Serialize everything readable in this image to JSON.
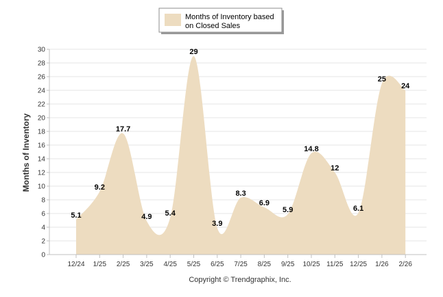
{
  "chart_data": {
    "type": "area",
    "categories": [
      "12/24",
      "1/25",
      "2/25",
      "3/25",
      "4/25",
      "5/25",
      "6/25",
      "7/25",
      "8/25",
      "9/25",
      "10/25",
      "11/25",
      "12/25",
      "1/26",
      "2/26"
    ],
    "series": [
      {
        "name": "Months of Inventory based on Closed Sales",
        "values": [
          5.1,
          9.2,
          17.7,
          4.9,
          5.4,
          29,
          3.9,
          8.3,
          6.9,
          5.9,
          14.8,
          12,
          6.1,
          25,
          24
        ],
        "labels": [
          "5.1",
          "9.2",
          "17.7",
          "4.9",
          "5.4",
          "29",
          "3.9",
          "8.3",
          "6.9",
          "5.9",
          "14.8",
          "12",
          "6.1",
          "25",
          "24"
        ],
        "color": "#eddcc0"
      }
    ],
    "ylabel": "Months of Inventory",
    "ylim": [
      0,
      30
    ],
    "yticks": [
      "0",
      "2",
      "4",
      "6",
      "8",
      "10",
      "12",
      "14",
      "16",
      "18",
      "20",
      "22",
      "24",
      "26",
      "28",
      "30"
    ],
    "grid": true,
    "legend": "top-center"
  },
  "legend": {
    "line1": "Months of Inventory based",
    "line2": "on Closed Sales"
  },
  "footer": "Copyright © Trendgraphix, Inc.",
  "colors": {
    "area": "#eddcc0",
    "grid": "#e6e6e6",
    "axis": "#c0c0c0"
  }
}
